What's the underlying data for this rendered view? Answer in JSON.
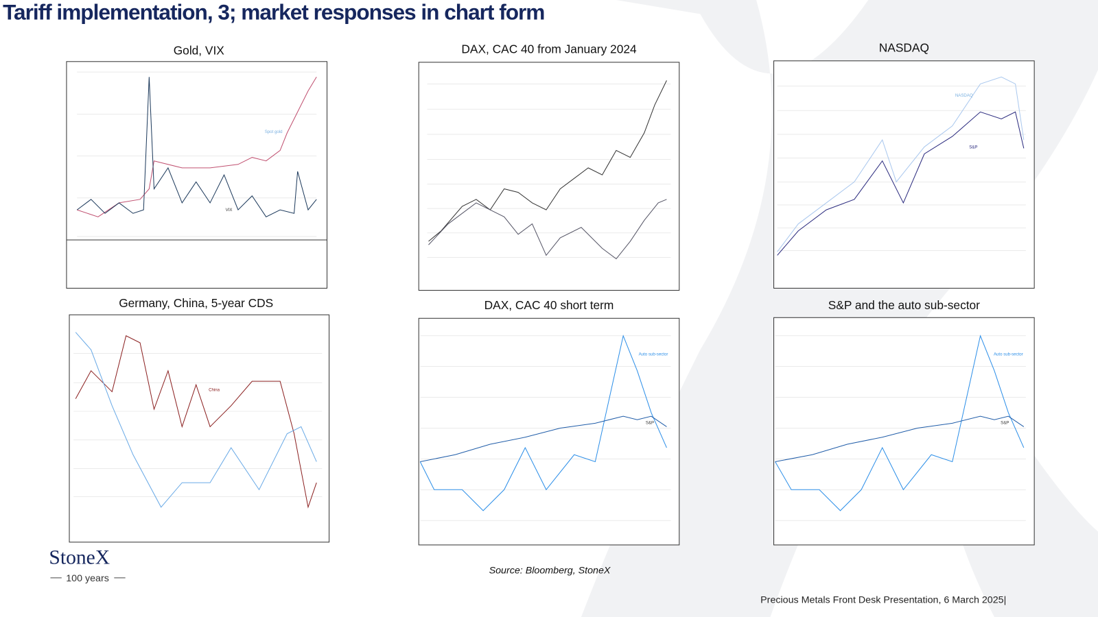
{
  "header": {
    "title": "Tariff implementation, 3;  market responses in chart form"
  },
  "panels": [
    {
      "title": "Gold, VIX",
      "labels": [
        "Spot gold",
        "VIX"
      ]
    },
    {
      "title": "DAX, CAC 40 from January 2024",
      "labels": []
    },
    {
      "title": "NASDAQ",
      "labels": [
        "NASDAQ",
        "S&P"
      ]
    },
    {
      "title": "Germany, China, 5-year CDS",
      "labels": [
        "China"
      ]
    },
    {
      "title": "DAX, CAC 40 short term",
      "labels": [
        "Auto sub-sector",
        "S&P"
      ]
    },
    {
      "title": "S&P and the auto sub-sector",
      "labels": [
        "Auto sub-sector",
        "S&P"
      ]
    }
  ],
  "source": "Source: Bloomberg, StoneX",
  "footer": "Precious Metals Front Desk Presentation, 6 March 2025|",
  "logo": {
    "name": "StoneX",
    "tagline": "100 years"
  }
}
